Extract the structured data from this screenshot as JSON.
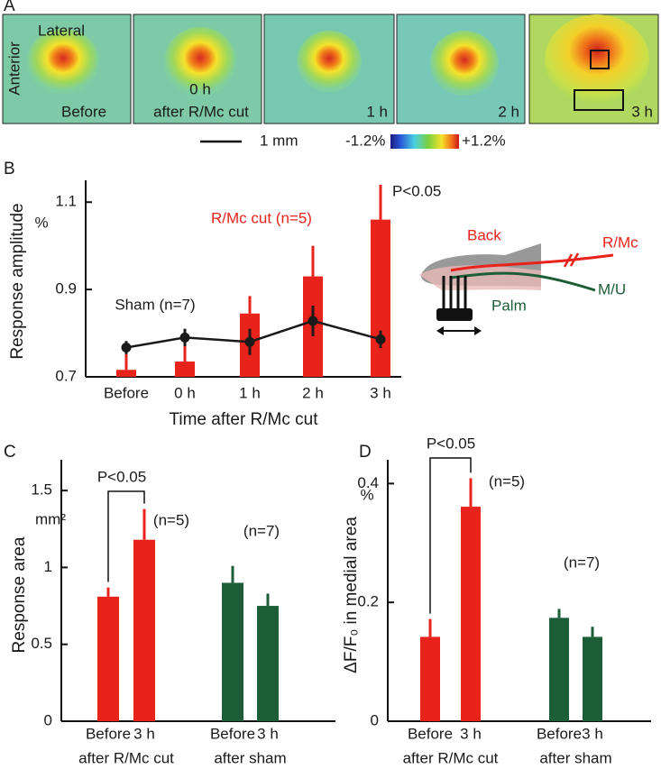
{
  "panel_a": {
    "label": "A",
    "lateral": "Lateral",
    "anterior": "Anterior",
    "images": [
      "Before",
      "0 h",
      "1 h",
      "2 h",
      "3 h"
    ],
    "image_1_note": "after R/Mc cut",
    "scale_bar": "1 mm",
    "colorbar_min": "-1.2%",
    "colorbar_max": "+1.2%"
  },
  "diagram_b": {
    "back": "Back",
    "rmc": "R/Mc",
    "palm": "Palm",
    "mu": "M/U"
  },
  "chart_data": [
    {
      "type": "bar",
      "panel": "B",
      "y_label": "Response amplitude",
      "y_unit": "%",
      "x_label": "Time after R/Mc cut",
      "categories": [
        "Before",
        "0 h",
        "1 h",
        "2 h",
        "3 h"
      ],
      "series": [
        {
          "name": "R/Mc cut (n=5)",
          "type": "bar",
          "color": "#e8231c",
          "values": [
            0.716,
            0.735,
            0.845,
            0.93,
            1.06
          ],
          "errors": [
            0.04,
            0.05,
            0.04,
            0.07,
            0.08
          ]
        },
        {
          "name": "Sham (n=7)",
          "type": "line",
          "color": "#1a1a1a",
          "values": [
            0.767,
            0.79,
            0.78,
            0.828,
            0.786
          ],
          "errors": [
            0.015,
            0.02,
            0.03,
            0.035,
            0.02
          ]
        }
      ],
      "annotations": [
        "P<0.05"
      ],
      "ylim": [
        0.7,
        1.15
      ],
      "yticks": [
        0.7,
        0.9,
        1.1
      ]
    },
    {
      "type": "bar",
      "panel": "C",
      "y_label": "Response area",
      "y_unit": "mm²",
      "categories": [
        "Before",
        "3 h",
        "Before",
        "3 h"
      ],
      "series": [
        {
          "name": "after R/Mc cut",
          "type": "bar",
          "color": "#e8231c",
          "values": [
            0.81,
            1.18,
            null,
            null
          ],
          "errors": [
            0.06,
            0.2,
            null,
            null
          ]
        },
        {
          "name": "after sham",
          "type": "bar",
          "color": "#1d5e38",
          "values": [
            null,
            null,
            0.9,
            0.75
          ],
          "errors": [
            null,
            null,
            0.11,
            0.08
          ]
        }
      ],
      "annotations": [
        "P<0.05",
        "(n=5)",
        "(n=7)"
      ],
      "ylim": [
        0,
        1.7
      ],
      "yticks": [
        0,
        0.5,
        1,
        1.5
      ]
    },
    {
      "type": "bar",
      "panel": "D",
      "y_label": "ΔF/F₀ in medial area",
      "y_unit": "%",
      "categories": [
        "Before",
        "3 h",
        "Before",
        "3 h"
      ],
      "series": [
        {
          "name": "after R/Mc cut",
          "type": "bar",
          "color": "#e8231c",
          "values": [
            0.142,
            0.361,
            null,
            null
          ],
          "errors": [
            0.03,
            0.048,
            null,
            null
          ]
        },
        {
          "name": "after sham",
          "type": "bar",
          "color": "#1d5e38",
          "values": [
            null,
            null,
            0.174,
            0.142
          ],
          "errors": [
            null,
            null,
            0.015,
            0.017
          ]
        }
      ],
      "annotations": [
        "P<0.05",
        "(n=5)",
        "(n=7)"
      ],
      "ylim": [
        0,
        0.44
      ],
      "yticks": [
        0,
        0.2,
        0.4
      ]
    }
  ]
}
